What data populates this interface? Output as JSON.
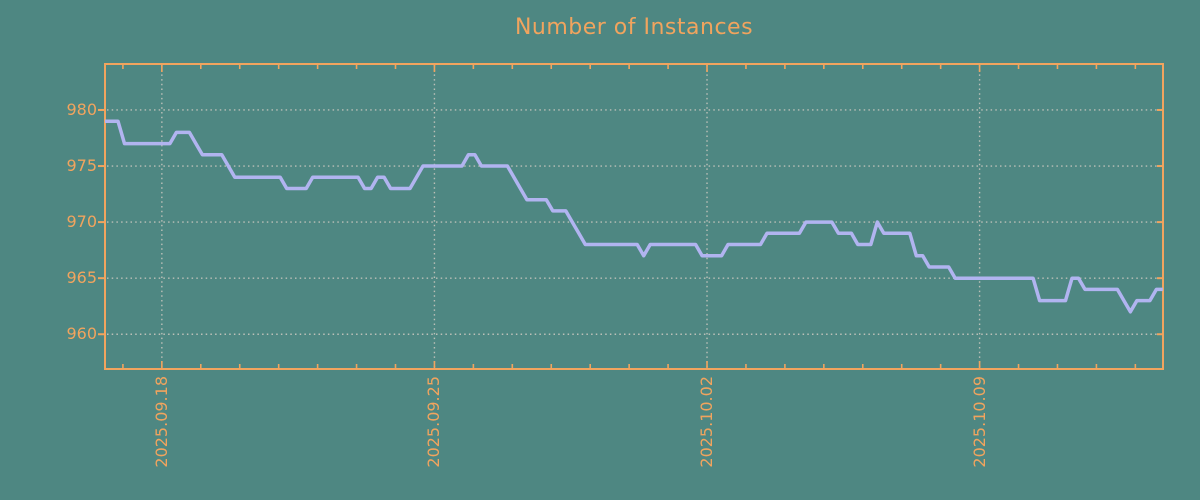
{
  "colors": {
    "background": "#4e8782",
    "accent_orange": "#f1a45e",
    "series_line": "#b1b4f0",
    "gridline": "#bcc0b8"
  },
  "chart_data": {
    "type": "line",
    "title": "Number of Instances",
    "xlabel": "",
    "ylabel": "",
    "grid": true,
    "legend": false,
    "y_ticks": [
      980,
      975,
      970,
      965,
      960
    ],
    "ylim": [
      956.9,
      984.1
    ],
    "x_major_ticks": [
      {
        "day": 0,
        "label": "2025.09.18"
      },
      {
        "day": 7,
        "label": "2025.09.25"
      },
      {
        "day": 14,
        "label": "2025.10.02"
      },
      {
        "day": 21,
        "label": "2025.10.09"
      }
    ],
    "x_minor_tick_every_days": 1,
    "xlim_days": [
      -1.46,
      25.71
    ],
    "x_start_day_offset": -1.46,
    "x_step_days": 0.166667,
    "values": [
      979,
      979,
      979,
      977,
      977,
      977,
      977,
      977,
      977,
      977,
      977,
      978,
      978,
      978,
      977,
      976,
      976,
      976,
      976,
      975,
      974,
      974,
      974,
      974,
      974,
      974,
      974,
      974,
      973,
      973,
      973,
      973,
      974,
      974,
      974,
      974,
      974,
      974,
      974,
      974,
      973,
      973,
      974,
      974,
      973,
      973,
      973,
      973,
      974,
      975,
      975,
      975,
      975,
      975,
      975,
      975,
      976,
      976,
      975,
      975,
      975,
      975,
      975,
      974,
      973,
      972,
      972,
      972,
      972,
      971,
      971,
      971,
      970,
      969,
      968,
      968,
      968,
      968,
      968,
      968,
      968,
      968,
      968,
      967,
      968,
      968,
      968,
      968,
      968,
      968,
      968,
      968,
      967,
      967,
      967,
      967,
      968,
      968,
      968,
      968,
      968,
      968,
      969,
      969,
      969,
      969,
      969,
      969,
      970,
      970,
      970,
      970,
      970,
      969,
      969,
      969,
      968,
      968,
      968,
      970,
      969,
      969,
      969,
      969,
      969,
      967,
      967,
      966,
      966,
      966,
      966,
      965,
      965,
      965,
      965,
      965,
      965,
      965,
      965,
      965,
      965,
      965,
      965,
      965,
      963,
      963,
      963,
      963,
      963,
      965,
      965,
      964,
      964,
      964,
      964,
      964,
      964,
      963,
      962,
      963,
      963,
      963,
      964,
      964
    ]
  }
}
